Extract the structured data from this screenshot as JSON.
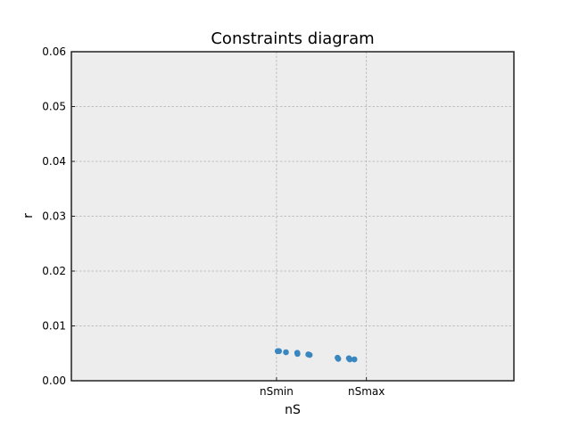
{
  "chart_data": {
    "type": "scatter",
    "title": "Constraints diagram",
    "xlabel": "nS",
    "ylabel": "r",
    "x_ticks": [
      {
        "label": "nSmin",
        "value": 0.9611
      },
      {
        "label": "nSmax",
        "value": 0.965
      }
    ],
    "x_range": [
      0.9522,
      0.9714
    ],
    "ylim": [
      0,
      0.06
    ],
    "y_ticks": [
      "0.00",
      "0.01",
      "0.02",
      "0.03",
      "0.04",
      "0.05",
      "0.06"
    ],
    "grid": true,
    "colors": {
      "points": "#3a87c0",
      "background": "#ededed",
      "grid": "#b0b0b0"
    },
    "points": [
      {
        "x": 0.96115,
        "y": 0.0054
      },
      {
        "x": 0.96121,
        "y": 0.0054
      },
      {
        "x": 0.96151,
        "y": 0.0052
      },
      {
        "x": 0.962,
        "y": 0.0051
      },
      {
        "x": 0.96201,
        "y": 0.0049
      },
      {
        "x": 0.96248,
        "y": 0.0048
      },
      {
        "x": 0.96254,
        "y": 0.0047
      },
      {
        "x": 0.96375,
        "y": 0.0042
      },
      {
        "x": 0.96378,
        "y": 0.004
      },
      {
        "x": 0.96424,
        "y": 0.0041
      },
      {
        "x": 0.96428,
        "y": 0.0039
      },
      {
        "x": 0.96448,
        "y": 0.0039
      }
    ]
  }
}
